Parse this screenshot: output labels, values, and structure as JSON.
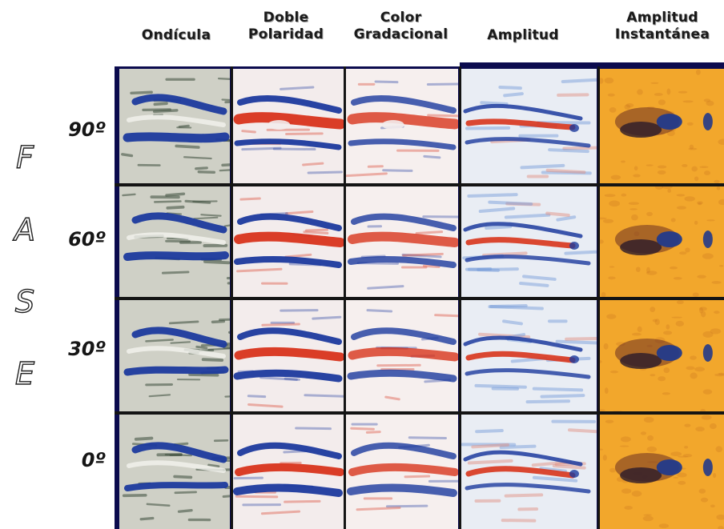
{
  "headers": {
    "ondicula": "Ondícula",
    "doble_polaridad": [
      "Doble",
      "Polaridad"
    ],
    "color_gradacional": [
      "Color",
      "Gradacional"
    ],
    "amplitud": "Amplitud",
    "amplitud_instantanea": [
      "Amplitud",
      "Instantánea"
    ]
  },
  "fase_letters": [
    "F",
    "A",
    "S",
    "E"
  ],
  "row_angles": [
    "90º",
    "60º",
    "30º",
    "0º"
  ],
  "colors": {
    "frame": "#0b0b4e",
    "seismic_blue": "#1c3a9e",
    "seismic_red": "#d8341c",
    "wiggle_bg": "#cfd0c6",
    "instantanea_bg": "#f2a72c",
    "instantanea_dark": "#2a1a2a"
  }
}
